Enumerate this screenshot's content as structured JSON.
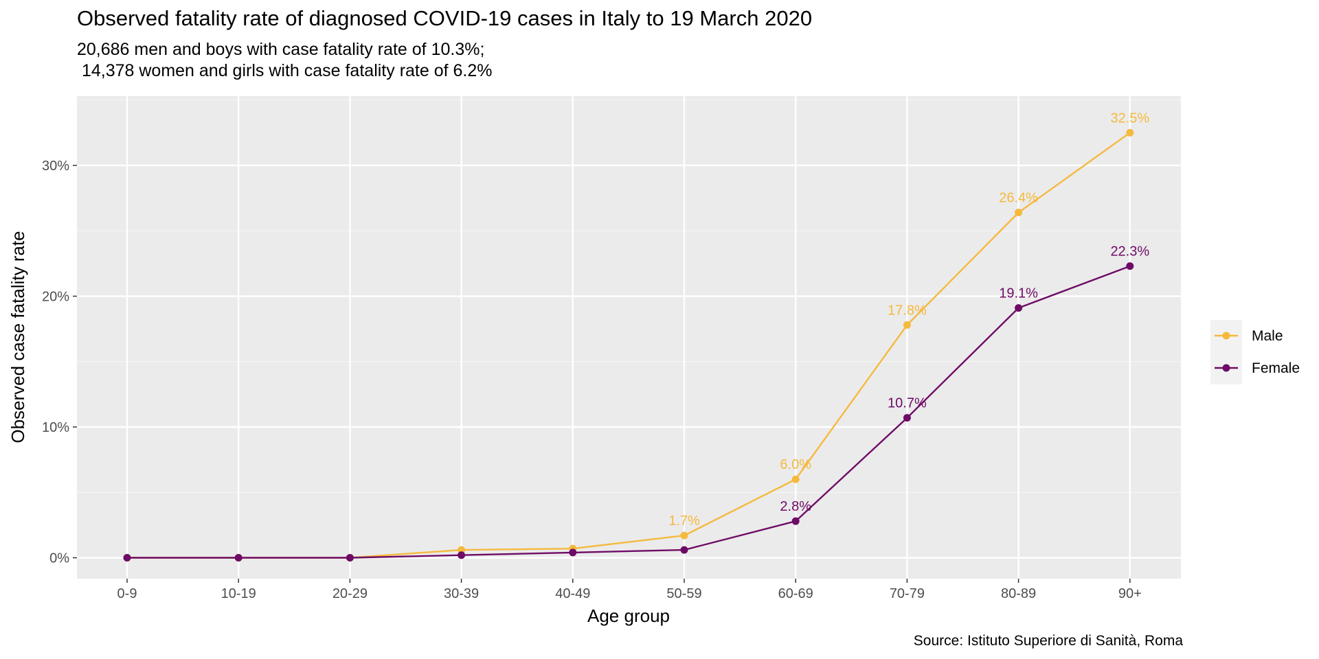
{
  "title": "Observed fatality rate of diagnosed COVID-19 cases in Italy to 19 March 2020",
  "subtitle": "20,686 men and boys with case fatality rate of 10.3%;\n 14,378 women and girls with case fatality rate of 6.2%",
  "caption": "Source: Istituto Superiore di Sanità, Roma",
  "chart_data": {
    "type": "line",
    "xlabel": "Age group",
    "ylabel": "Observed case fatality rate",
    "categories": [
      "0-9",
      "10-19",
      "20-29",
      "30-39",
      "40-49",
      "50-59",
      "60-69",
      "70-79",
      "80-89",
      "90+"
    ],
    "ylim": [
      -1.6,
      35.3
    ],
    "yticks": [
      0,
      10,
      20,
      30
    ],
    "ytick_labels": [
      "0%",
      "10%",
      "20%",
      "30%"
    ],
    "grid": true,
    "legend_position": "right",
    "series": [
      {
        "name": "Male",
        "color": "#F5B93C",
        "values": [
          0,
          0,
          0,
          0.6,
          0.7,
          1.7,
          6.0,
          17.8,
          26.4,
          32.5
        ],
        "labels": [
          "",
          "",
          "",
          "",
          "",
          "1.7%",
          "6.0%",
          "17.8%",
          "26.4%",
          "32.5%"
        ]
      },
      {
        "name": "Female",
        "color": "#6E0B66",
        "values": [
          0,
          0,
          0,
          0.2,
          0.4,
          0.6,
          2.8,
          10.7,
          19.1,
          22.3
        ],
        "labels": [
          "",
          "",
          "",
          "",
          "",
          "",
          "2.8%",
          "10.7%",
          "19.1%",
          "22.3%"
        ]
      }
    ]
  }
}
